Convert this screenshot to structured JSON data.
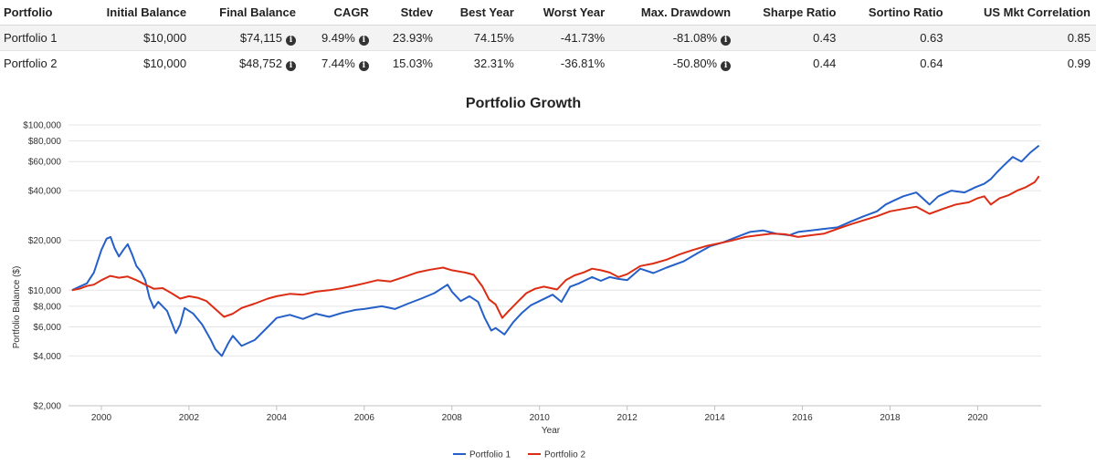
{
  "table": {
    "headers": [
      "Portfolio",
      "Initial Balance",
      "Final Balance",
      "CAGR",
      "Stdev",
      "Best Year",
      "Worst Year",
      "Max. Drawdown",
      "Sharpe Ratio",
      "Sortino Ratio",
      "US Mkt Correlation"
    ],
    "rows": [
      {
        "name": "Portfolio 1",
        "initial": "$10,000",
        "final": "$74,115",
        "cagr": "9.49%",
        "stdev": "23.93%",
        "best": "74.15%",
        "worst": "-41.73%",
        "drawdown": "-81.08%",
        "sharpe": "0.43",
        "sortino": "0.63",
        "corr": "0.85"
      },
      {
        "name": "Portfolio 2",
        "initial": "$10,000",
        "final": "$48,752",
        "cagr": "7.44%",
        "stdev": "15.03%",
        "best": "32.31%",
        "worst": "-36.81%",
        "drawdown": "-50.80%",
        "sharpe": "0.44",
        "sortino": "0.64",
        "corr": "0.99"
      }
    ],
    "info_glyph": "i"
  },
  "chart_data": {
    "type": "line",
    "title": "Portfolio Growth",
    "xlabel": "Year",
    "ylabel": "Portfolio Balance ($)",
    "yscale": "log",
    "ylim": [
      2000,
      100000
    ],
    "xlim": [
      1999.25,
      2021.45
    ],
    "yticks": [
      2000,
      4000,
      6000,
      8000,
      10000,
      20000,
      40000,
      60000,
      80000,
      100000
    ],
    "ytick_labels": [
      "$2,000",
      "$4,000",
      "$6,000",
      "$8,000",
      "$10,000",
      "$20,000",
      "$40,000",
      "$60,000",
      "$80,000",
      "$100,000"
    ],
    "xticks": [
      2000,
      2002,
      2004,
      2006,
      2008,
      2010,
      2012,
      2014,
      2016,
      2018,
      2020
    ],
    "xtick_labels": [
      "2000",
      "2002",
      "2004",
      "2006",
      "2008",
      "2010",
      "2012",
      "2014",
      "2016",
      "2018",
      "2020"
    ],
    "grid": true,
    "legend_position": "bottom-center",
    "series": [
      {
        "name": "Portfolio 1",
        "color": "#2560c9",
        "x": [
          1999.33,
          1999.5,
          1999.67,
          1999.83,
          2000.0,
          2000.12,
          2000.21,
          2000.3,
          2000.4,
          2000.5,
          2000.6,
          2000.7,
          2000.8,
          2000.9,
          2001.0,
          2001.1,
          2001.2,
          2001.3,
          2001.5,
          2001.7,
          2001.8,
          2001.9,
          2002.1,
          2002.3,
          2002.5,
          2002.6,
          2002.75,
          2002.9,
          2003.0,
          2003.2,
          2003.5,
          2003.8,
          2004.0,
          2004.3,
          2004.6,
          2004.9,
          2005.2,
          2005.5,
          2005.8,
          2006.0,
          2006.4,
          2006.7,
          2007.0,
          2007.3,
          2007.6,
          2007.9,
          2008.0,
          2008.2,
          2008.4,
          2008.6,
          2008.75,
          2008.9,
          2009.0,
          2009.2,
          2009.4,
          2009.6,
          2009.8,
          2010.0,
          2010.3,
          2010.5,
          2010.7,
          2010.9,
          2011.2,
          2011.4,
          2011.6,
          2011.8,
          2012.0,
          2012.3,
          2012.6,
          2012.9,
          2013.3,
          2013.6,
          2013.9,
          2014.2,
          2014.5,
          2014.8,
          2015.1,
          2015.4,
          2015.7,
          2015.9,
          2016.2,
          2016.5,
          2016.8,
          2017.1,
          2017.4,
          2017.7,
          2017.9,
          2018.1,
          2018.3,
          2018.6,
          2018.9,
          2019.1,
          2019.4,
          2019.7,
          2019.95,
          2020.15,
          2020.3,
          2020.45,
          2020.6,
          2020.8,
          2021.0,
          2021.2,
          2021.4
        ],
        "values": [
          10000,
          10500,
          11000,
          12800,
          17500,
          20500,
          21000,
          18000,
          16000,
          17500,
          19000,
          16500,
          14000,
          13000,
          11500,
          9000,
          7800,
          8500,
          7500,
          5500,
          6200,
          7800,
          7200,
          6200,
          5000,
          4400,
          4000,
          4800,
          5300,
          4600,
          5000,
          6000,
          6800,
          7100,
          6700,
          7200,
          6900,
          7300,
          7600,
          7700,
          8000,
          7700,
          8300,
          8900,
          9600,
          10800,
          9800,
          8600,
          9200,
          8500,
          6800,
          5700,
          5900,
          5400,
          6400,
          7300,
          8100,
          8600,
          9400,
          8500,
          10500,
          11000,
          12000,
          11400,
          12000,
          11700,
          11500,
          13500,
          12700,
          13700,
          15000,
          16700,
          18500,
          19500,
          21000,
          22500,
          23000,
          22000,
          21500,
          22500,
          23000,
          23500,
          24000,
          26000,
          28000,
          30000,
          33000,
          35000,
          37000,
          39000,
          33000,
          37000,
          40000,
          39000,
          42000,
          44000,
          47000,
          52000,
          57000,
          64000,
          60000,
          68000,
          75000
        ]
      },
      {
        "name": "Portfolio 2",
        "color": "#dc2d14",
        "x": [
          1999.33,
          1999.5,
          1999.67,
          1999.83,
          2000.0,
          2000.2,
          2000.4,
          2000.6,
          2000.8,
          2001.0,
          2001.2,
          2001.4,
          2001.6,
          2001.8,
          2002.0,
          2002.2,
          2002.4,
          2002.6,
          2002.8,
          2003.0,
          2003.2,
          2003.5,
          2003.8,
          2004.0,
          2004.3,
          2004.6,
          2004.9,
          2005.2,
          2005.5,
          2005.8,
          2006.0,
          2006.3,
          2006.6,
          2006.9,
          2007.2,
          2007.5,
          2007.8,
          2008.0,
          2008.3,
          2008.5,
          2008.7,
          2008.85,
          2009.0,
          2009.15,
          2009.3,
          2009.5,
          2009.7,
          2009.9,
          2010.1,
          2010.4,
          2010.6,
          2010.8,
          2011.0,
          2011.2,
          2011.4,
          2011.6,
          2011.8,
          2012.0,
          2012.3,
          2012.6,
          2012.9,
          2013.2,
          2013.5,
          2013.8,
          2014.1,
          2014.4,
          2014.7,
          2015.0,
          2015.3,
          2015.6,
          2015.9,
          2016.2,
          2016.5,
          2016.8,
          2017.1,
          2017.4,
          2017.7,
          2018.0,
          2018.3,
          2018.6,
          2018.9,
          2019.2,
          2019.5,
          2019.8,
          2020.0,
          2020.15,
          2020.3,
          2020.5,
          2020.7,
          2020.9,
          2021.1,
          2021.3,
          2021.4
        ],
        "values": [
          10000,
          10200,
          10600,
          10800,
          11500,
          12200,
          11900,
          12100,
          11500,
          10800,
          10200,
          10300,
          9600,
          8900,
          9200,
          9000,
          8600,
          7700,
          6900,
          7200,
          7800,
          8300,
          8900,
          9200,
          9500,
          9400,
          9800,
          10000,
          10300,
          10700,
          11000,
          11500,
          11300,
          12000,
          12800,
          13300,
          13700,
          13200,
          12800,
          12400,
          10500,
          8800,
          8200,
          6800,
          7500,
          8500,
          9600,
          10200,
          10500,
          10100,
          11500,
          12300,
          12800,
          13500,
          13200,
          12800,
          12000,
          12500,
          14000,
          14500,
          15300,
          16500,
          17500,
          18500,
          19200,
          20000,
          21000,
          21500,
          22000,
          21800,
          21000,
          21500,
          22000,
          23500,
          25000,
          26500,
          28000,
          30000,
          31000,
          32000,
          29000,
          31000,
          33000,
          34000,
          36000,
          37000,
          33000,
          36000,
          37500,
          40000,
          42000,
          45000,
          49000
        ]
      }
    ]
  }
}
